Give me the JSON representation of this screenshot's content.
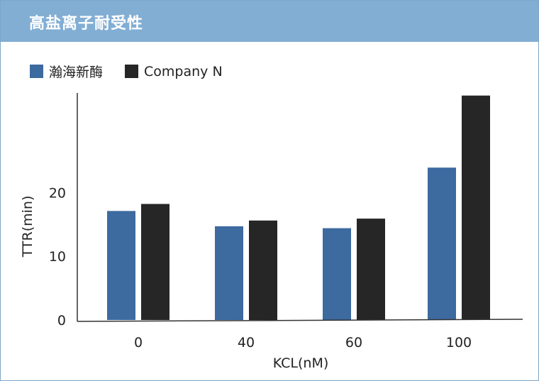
{
  "header": {
    "title": "高盐离子耐受性"
  },
  "colors": {
    "title_bg": "#82aed4",
    "series_1": "#3d6a9f",
    "series_2": "#262626"
  },
  "chart_data": {
    "type": "bar",
    "title": "高盐离子耐受性",
    "xlabel": "KCL(nM)",
    "ylabel": "TTR(min)",
    "categories": [
      "0",
      "40",
      "60",
      "100"
    ],
    "series": [
      {
        "name": "瀚海新酶",
        "values": [
          17.1,
          14.7,
          14.4,
          23.9
        ]
      },
      {
        "name": "Company N",
        "values": [
          18.2,
          15.6,
          15.9,
          35.2
        ]
      }
    ],
    "yticks": [
      0,
      10,
      20
    ],
    "ylim": [
      0,
      35.5
    ],
    "grid": false,
    "legend_position": "top-left"
  }
}
